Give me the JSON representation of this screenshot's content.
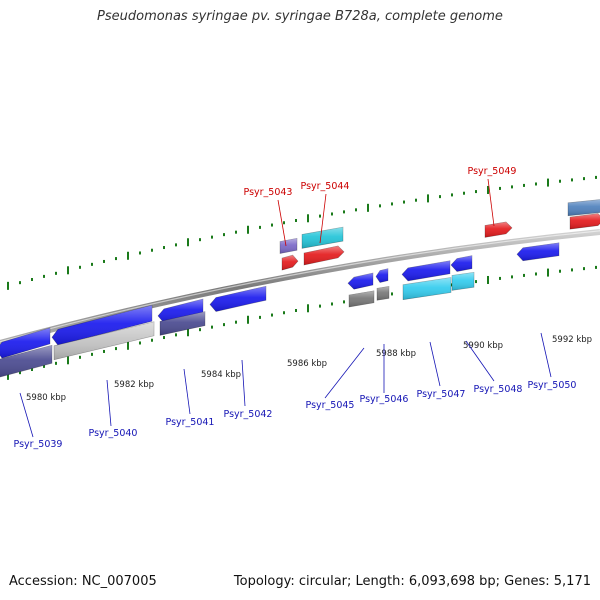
{
  "title": "Pseudomonas syringae pv. syringae B728a, complete genome",
  "footer": {
    "accession": "Accession: NC_007005",
    "topology": "Topology: circular; Length: 6,093,698 bp; Genes: 5,171"
  },
  "colors": {
    "forward_gene": "#e41a1c",
    "reverse_gene": "#1a1aee",
    "light_blue_gene": "#33ccee",
    "cyan_gene": "#22c4d8",
    "purple_gene": "#7a68c8",
    "dark_purple_gene": "#4a4a90",
    "gray_gene": "#777777",
    "light_gray_gene": "#c4c4c4",
    "steel_blue_gene": "#4f81bd",
    "backbone": "#8a8a8a",
    "tick": "#1a7a1a",
    "forward_label": "#cc0000",
    "reverse_label": "#1515b5"
  },
  "scale_labels": [
    "5980 kbp",
    "5982 kbp",
    "5984 kbp",
    "5986 kbp",
    "5988 kbp",
    "5990 kbp",
    "5992 kbp"
  ],
  "forward_genes": [
    {
      "label": "Psyr_5043"
    },
    {
      "label": "Psyr_5044"
    },
    {
      "label": "Psyr_5049"
    }
  ],
  "reverse_genes": [
    {
      "label": "Psyr_5039"
    },
    {
      "label": "Psyr_5040"
    },
    {
      "label": "Psyr_5041"
    },
    {
      "label": "Psyr_5042"
    },
    {
      "label": "Psyr_5045"
    },
    {
      "label": "Psyr_5046"
    },
    {
      "label": "Psyr_5047"
    },
    {
      "label": "Psyr_5048"
    },
    {
      "label": "Psyr_5050"
    }
  ]
}
